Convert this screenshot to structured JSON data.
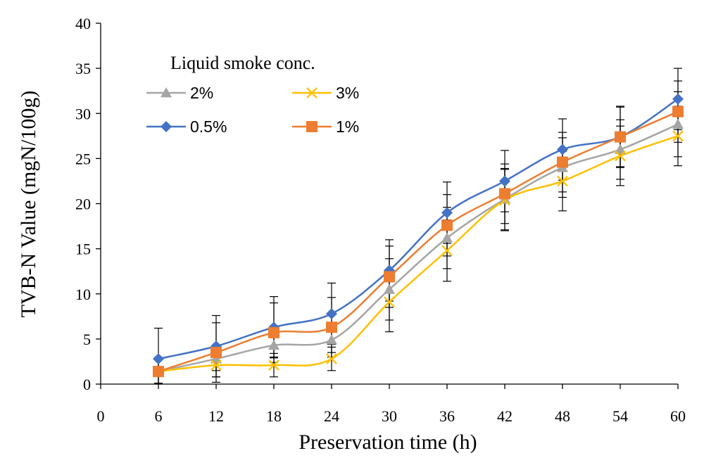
{
  "chart_data": {
    "type": "line",
    "xlabel": "Preservation time (h)",
    "ylabel": "TVB-N Value (mgN/100g)",
    "xlim": [
      0,
      60
    ],
    "ylim": [
      0,
      40
    ],
    "xticks": [
      "0",
      "6",
      "12",
      "18",
      "24",
      "30",
      "36",
      "42",
      "48",
      "54",
      "60"
    ],
    "yticks": [
      "0",
      "5",
      "10",
      "15",
      "20",
      "25",
      "30",
      "35",
      "40"
    ],
    "grid": false,
    "legend": {
      "title": "Liquid smoke  conc.",
      "placement": "top-left"
    },
    "x": [
      6,
      12,
      18,
      24,
      30,
      36,
      42,
      48,
      54,
      60
    ],
    "series": [
      {
        "name": "2%",
        "color": "#A5A5A5",
        "marker": "triangle",
        "values": [
          1.4,
          2.8,
          4.3,
          4.9,
          10.5,
          16.2,
          20.5,
          24.0,
          26.0,
          28.8
        ],
        "errors": [
          1.3,
          1.3,
          1.3,
          1.4,
          3.4,
          3.4,
          3.4,
          3.3,
          3.3,
          3.6
        ]
      },
      {
        "name": "3%",
        "color": "#FFC000",
        "marker": "x",
        "values": [
          1.4,
          2.1,
          2.1,
          2.8,
          9.1,
          14.8,
          20.4,
          22.5,
          25.3,
          27.5
        ],
        "errors": [
          1.3,
          1.3,
          1.3,
          1.3,
          3.3,
          3.4,
          3.4,
          3.3,
          3.3,
          3.3
        ]
      },
      {
        "name": "0.5%",
        "color": "#4472C4",
        "marker": "diamond",
        "values": [
          2.8,
          4.2,
          6.3,
          7.8,
          12.6,
          19.0,
          22.5,
          26.0,
          27.4,
          31.6
        ],
        "errors": [
          3.4,
          3.4,
          3.4,
          3.4,
          3.4,
          3.4,
          3.4,
          3.4,
          3.4,
          3.4
        ]
      },
      {
        "name": "1%",
        "color": "#ED7D31",
        "marker": "square",
        "values": [
          1.4,
          3.5,
          5.7,
          6.3,
          11.9,
          17.6,
          21.1,
          24.6,
          27.4,
          30.2
        ],
        "errors": [
          1.3,
          3.3,
          3.3,
          3.3,
          3.4,
          3.4,
          3.3,
          3.3,
          3.3,
          3.4
        ]
      }
    ]
  }
}
